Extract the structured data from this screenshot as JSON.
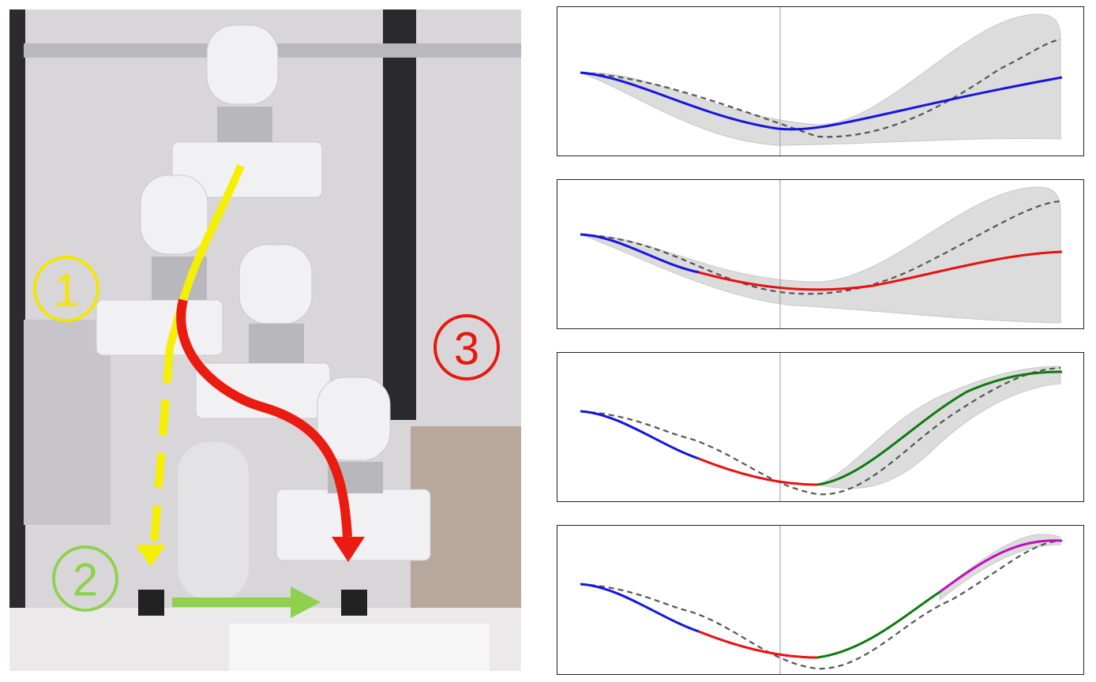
{
  "photo": {
    "steps": [
      {
        "label": "1",
        "color": "#f2e600"
      },
      {
        "label": "2",
        "color": "#8fd14f"
      },
      {
        "label": "3",
        "color": "#e8180c"
      }
    ]
  }
}
